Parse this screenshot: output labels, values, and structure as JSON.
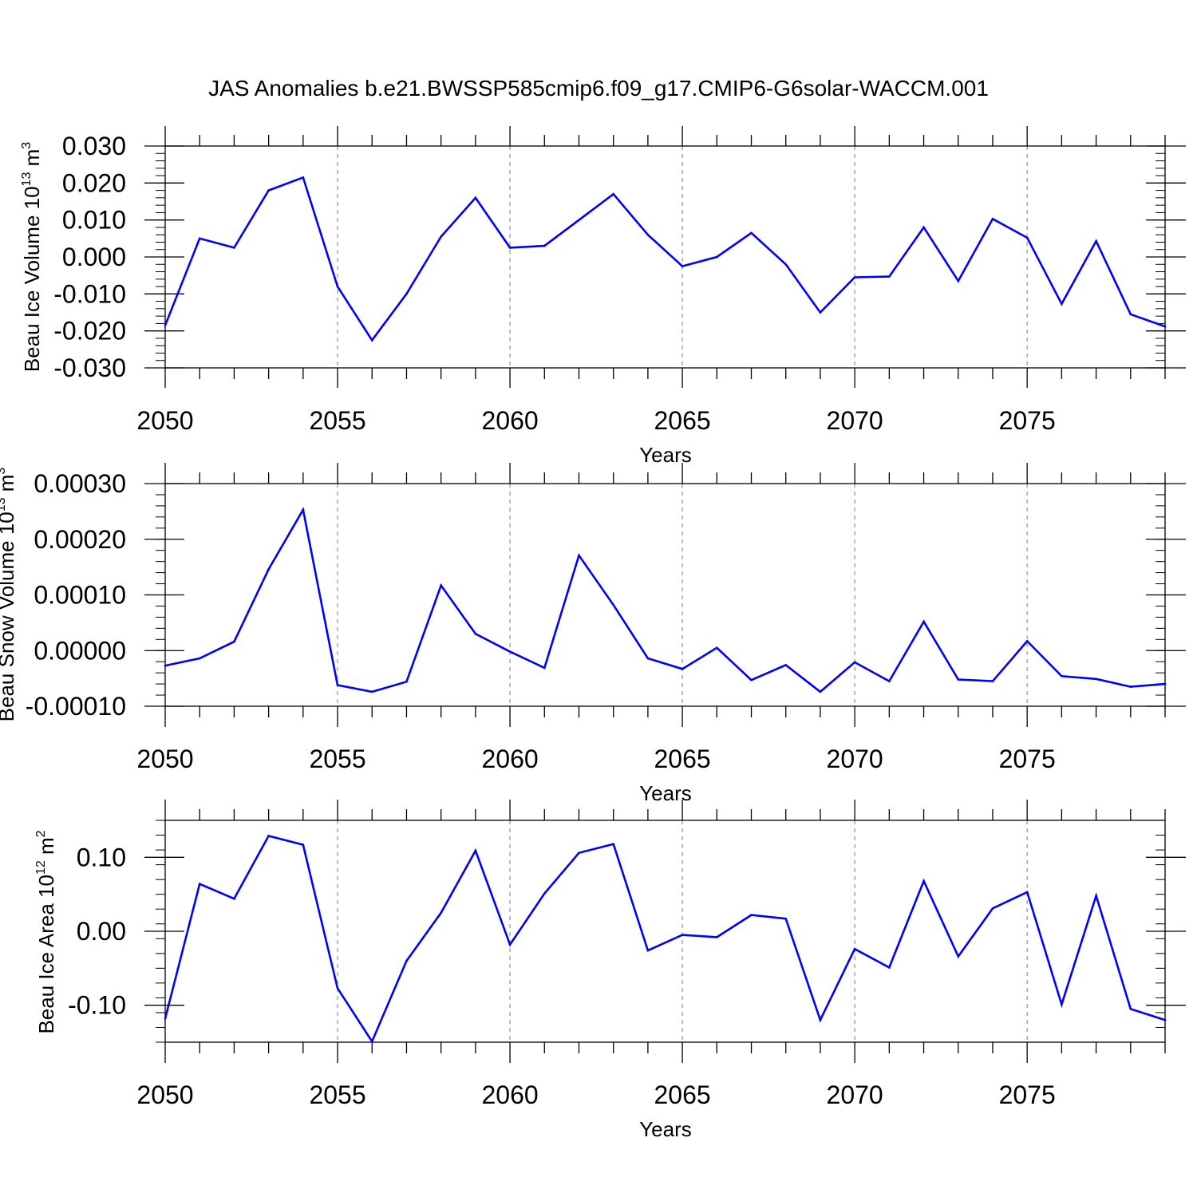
{
  "title": "JAS Anomalies b.e21.BWSSP585cmip6.f09_g17.CMIP6-G6solar-WACCM.001",
  "colors": {
    "line": "#0000ff",
    "axis": "#000000",
    "grid": "#9a9a9a"
  },
  "chart_data": [
    {
      "type": "line",
      "xlabel": "Years",
      "ylabel": "Beau Ice Volume 10",
      "ylabel_sup": "13",
      "ylabel_unit": " m",
      "ylabel_unit_sup": "3",
      "xlim": [
        2050,
        2079
      ],
      "ylim": [
        -0.03,
        0.03
      ],
      "x_ticks": [
        2050,
        2055,
        2060,
        2065,
        2070,
        2075
      ],
      "x_tick_labels": [
        "2050",
        "2055",
        "2060",
        "2065",
        "2070",
        "2075"
      ],
      "y_ticks": [
        -0.03,
        -0.02,
        -0.01,
        0.0,
        0.01,
        0.02,
        0.03
      ],
      "y_tick_labels": [
        "-0.030",
        "-0.020",
        "-0.010",
        "0.000",
        "0.010",
        "0.020",
        "0.030"
      ],
      "grid": "vertical dashed at major x ticks",
      "x": [
        2050,
        2051,
        2052,
        2053,
        2054,
        2055,
        2056,
        2057,
        2058,
        2059,
        2060,
        2061,
        2062,
        2063,
        2064,
        2065,
        2066,
        2067,
        2068,
        2069,
        2070,
        2071,
        2072,
        2073,
        2074,
        2075,
        2076,
        2077,
        2078,
        2079
      ],
      "series": [
        {
          "values": [
            -0.0185,
            0.005,
            0.0025,
            0.018,
            0.0215,
            -0.008,
            -0.0225,
            -0.01,
            0.0055,
            0.016,
            0.0025,
            0.003,
            0.01,
            0.017,
            0.006,
            -0.0025,
            0.0,
            0.0065,
            -0.002,
            -0.015,
            -0.0055,
            -0.0053,
            0.008,
            -0.0065,
            0.0103,
            0.0052,
            -0.0127,
            0.0043,
            -0.0155,
            -0.0188
          ]
        }
      ]
    },
    {
      "type": "line",
      "xlabel": "Years",
      "ylabel": "Beau Snow Volume 10",
      "ylabel_sup": "13",
      "ylabel_unit": " m",
      "ylabel_unit_sup": "3",
      "xlim": [
        2050,
        2079
      ],
      "ylim": [
        -0.0001,
        0.0003
      ],
      "x_ticks": [
        2050,
        2055,
        2060,
        2065,
        2070,
        2075
      ],
      "x_tick_labels": [
        "2050",
        "2055",
        "2060",
        "2065",
        "2070",
        "2075"
      ],
      "y_ticks": [
        -0.0001,
        0.0,
        0.0001,
        0.0002,
        0.0003
      ],
      "y_tick_labels": [
        "-0.00010",
        "0.00000",
        "0.00010",
        "0.00020",
        "0.00030"
      ],
      "grid": "vertical dashed at major x ticks",
      "x": [
        2050,
        2051,
        2052,
        2053,
        2054,
        2055,
        2056,
        2057,
        2058,
        2059,
        2060,
        2061,
        2062,
        2063,
        2064,
        2065,
        2066,
        2067,
        2068,
        2069,
        2070,
        2071,
        2072,
        2073,
        2074,
        2075,
        2076,
        2077,
        2078,
        2079
      ],
      "series": [
        {
          "values": [
            -2.7e-05,
            -1.4e-05,
            1.6e-05,
            0.000146,
            0.000253,
            -6.2e-05,
            -7.4e-05,
            -5.6e-05,
            0.000117,
            3e-05,
            -2e-06,
            -3.1e-05,
            0.000171,
            8.2e-05,
            -1.4e-05,
            -3.3e-05,
            5e-06,
            -5.3e-05,
            -2.6e-05,
            -7.4e-05,
            -2.1e-05,
            -5.5e-05,
            5.2e-05,
            -5.2e-05,
            -5.5e-05,
            1.7e-05,
            -4.6e-05,
            -5.1e-05,
            -6.5e-05,
            -6e-05
          ]
        }
      ]
    },
    {
      "type": "line",
      "xlabel": "Years",
      "ylabel": "Beau Ice Area 10",
      "ylabel_sup": "12",
      "ylabel_unit": " m",
      "ylabel_unit_sup": "2",
      "xlim": [
        2050,
        2079
      ],
      "ylim": [
        -0.15,
        0.15
      ],
      "x_ticks": [
        2050,
        2055,
        2060,
        2065,
        2070,
        2075
      ],
      "x_tick_labels": [
        "2050",
        "2055",
        "2060",
        "2065",
        "2070",
        "2075"
      ],
      "y_ticks": [
        -0.1,
        0.0,
        0.1
      ],
      "y_tick_labels": [
        "-0.10",
        "0.00",
        "0.10"
      ],
      "grid": "vertical dashed at major x ticks",
      "x": [
        2050,
        2051,
        2052,
        2053,
        2054,
        2055,
        2056,
        2057,
        2058,
        2059,
        2060,
        2061,
        2062,
        2063,
        2064,
        2065,
        2066,
        2067,
        2068,
        2069,
        2070,
        2071,
        2072,
        2073,
        2074,
        2075,
        2076,
        2077,
        2078,
        2079
      ],
      "series": [
        {
          "values": [
            -0.118,
            0.064,
            0.044,
            0.129,
            0.117,
            -0.077,
            -0.149,
            -0.04,
            0.025,
            0.109,
            -0.018,
            0.051,
            0.106,
            0.118,
            -0.026,
            -0.005,
            -0.008,
            0.022,
            0.017,
            -0.12,
            -0.024,
            -0.049,
            0.068,
            -0.034,
            0.031,
            0.053,
            -0.099,
            0.048,
            -0.105,
            -0.12
          ]
        }
      ]
    }
  ]
}
